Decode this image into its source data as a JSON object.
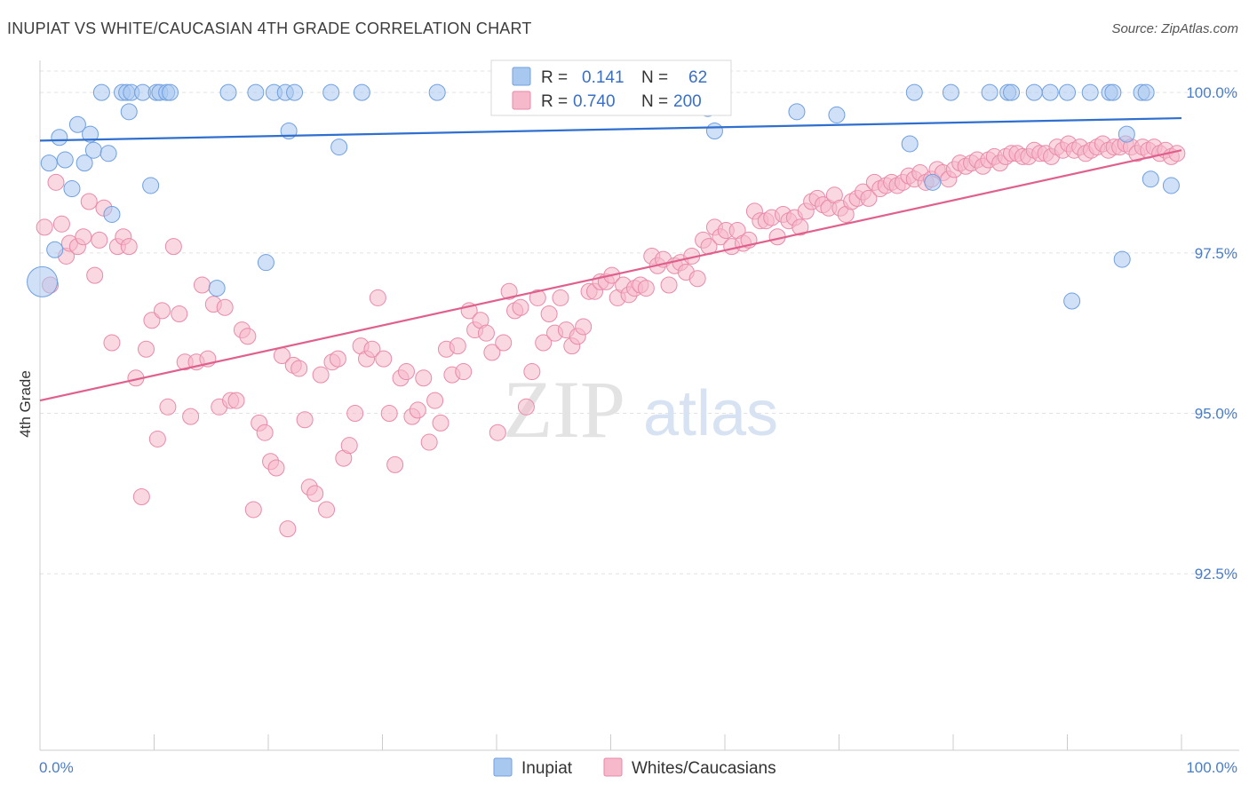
{
  "title": "INUPIAT VS WHITE/CAUCASIAN 4TH GRADE CORRELATION CHART",
  "source": "Source: ZipAtlas.com",
  "watermark": {
    "zip": "ZIP",
    "atlas": "atlas"
  },
  "colors": {
    "inupiat_fill": "#a9c8f0",
    "inupiat_stroke": "#6f9fe0",
    "inupiat_line": "#2f6fcf",
    "white_fill": "#f6b8cb",
    "white_stroke": "#e98aa9",
    "white_line": "#e0608d",
    "tick": "#4a7cc7"
  },
  "legend": {
    "rows": [
      {
        "r_label": "R =",
        "r_value": "0.141",
        "n_label": "N =",
        "n_value": "62"
      },
      {
        "r_label": "R =",
        "r_value": "0.740",
        "n_label": "N =",
        "n_value": "200"
      }
    ]
  },
  "chart_data": {
    "type": "scatter",
    "title": "INUPIAT VS WHITE/CAUCASIAN 4TH GRADE CORRELATION CHART",
    "xlabel": "",
    "ylabel": "4th Grade",
    "xlim": [
      0,
      100
    ],
    "ylim": [
      89.75,
      100.5
    ],
    "x_tick_labels": [
      "0.0%",
      "100.0%"
    ],
    "y_ticks": [
      92.5,
      95.0,
      97.5,
      100.0
    ],
    "y_tick_labels": [
      "92.5%",
      "95.0%",
      "97.5%",
      "100.0%"
    ],
    "legend_placement": "top-center",
    "grid": true,
    "series": [
      {
        "name": "Inupiat",
        "trend": {
          "x0": 0,
          "y0": 99.25,
          "x1": 100,
          "y1": 99.6
        },
        "points": [
          [
            0.2,
            97.05
          ],
          [
            0.8,
            98.9
          ],
          [
            1.3,
            97.55
          ],
          [
            1.7,
            99.3
          ],
          [
            2.2,
            98.95
          ],
          [
            2.8,
            98.5
          ],
          [
            3.3,
            99.5
          ],
          [
            3.9,
            98.9
          ],
          [
            4.4,
            99.35
          ],
          [
            4.7,
            99.1
          ],
          [
            5.4,
            100
          ],
          [
            6.0,
            99.05
          ],
          [
            6.3,
            98.1
          ],
          [
            7.2,
            100
          ],
          [
            7.6,
            100
          ],
          [
            7.8,
            99.7
          ],
          [
            8.0,
            100
          ],
          [
            9.0,
            100
          ],
          [
            9.7,
            98.55
          ],
          [
            10.2,
            100
          ],
          [
            10.5,
            100
          ],
          [
            11.1,
            100
          ],
          [
            11.4,
            100
          ],
          [
            15.5,
            96.95
          ],
          [
            16.5,
            100
          ],
          [
            18.9,
            100
          ],
          [
            19.8,
            97.35
          ],
          [
            20.5,
            100
          ],
          [
            21.5,
            100
          ],
          [
            21.8,
            99.4
          ],
          [
            22.3,
            100
          ],
          [
            25.5,
            100
          ],
          [
            26.2,
            99.15
          ],
          [
            28.2,
            100
          ],
          [
            34.8,
            100
          ],
          [
            47.6,
            100
          ],
          [
            52.9,
            100
          ],
          [
            56.9,
            100
          ],
          [
            58.5,
            99.75
          ],
          [
            59.1,
            99.4
          ],
          [
            66.3,
            99.7
          ],
          [
            69.8,
            99.65
          ],
          [
            76.2,
            99.2
          ],
          [
            76.6,
            100
          ],
          [
            78.2,
            98.6
          ],
          [
            79.8,
            100
          ],
          [
            83.2,
            100
          ],
          [
            84.8,
            100
          ],
          [
            85.1,
            100
          ],
          [
            87.1,
            100
          ],
          [
            88.5,
            100
          ],
          [
            90.0,
            100
          ],
          [
            90.4,
            96.75
          ],
          [
            92.0,
            100
          ],
          [
            93.7,
            100
          ],
          [
            94.0,
            100
          ],
          [
            94.8,
            97.4
          ],
          [
            95.2,
            99.35
          ],
          [
            96.5,
            100
          ],
          [
            96.9,
            100
          ],
          [
            97.3,
            98.65
          ],
          [
            99.1,
            98.55
          ]
        ]
      },
      {
        "name": "Whites/Caucasians",
        "trend": {
          "x0": 0,
          "y0": 95.2,
          "x1": 100,
          "y1": 99.1
        },
        "points": [
          [
            0.4,
            97.9
          ],
          [
            0.9,
            97.0
          ],
          [
            1.4,
            98.6
          ],
          [
            1.9,
            97.95
          ],
          [
            2.3,
            97.45
          ],
          [
            2.6,
            97.65
          ],
          [
            3.3,
            97.6
          ],
          [
            3.8,
            97.75
          ],
          [
            4.3,
            98.3
          ],
          [
            4.8,
            97.15
          ],
          [
            5.2,
            97.7
          ],
          [
            5.6,
            98.2
          ],
          [
            6.3,
            96.1
          ],
          [
            6.8,
            97.6
          ],
          [
            7.3,
            97.75
          ],
          [
            7.8,
            97.6
          ],
          [
            8.4,
            95.55
          ],
          [
            8.9,
            93.7
          ],
          [
            9.3,
            96.0
          ],
          [
            9.8,
            96.45
          ],
          [
            10.3,
            94.6
          ],
          [
            10.7,
            96.6
          ],
          [
            11.2,
            95.1
          ],
          [
            11.7,
            97.6
          ],
          [
            12.2,
            96.55
          ],
          [
            12.7,
            95.8
          ],
          [
            13.2,
            94.95
          ],
          [
            13.7,
            95.8
          ],
          [
            14.2,
            97.0
          ],
          [
            14.7,
            95.85
          ],
          [
            15.2,
            96.7
          ],
          [
            15.7,
            95.1
          ],
          [
            16.2,
            96.65
          ],
          [
            16.7,
            95.2
          ],
          [
            17.2,
            95.2
          ],
          [
            17.7,
            96.3
          ],
          [
            18.2,
            96.2
          ],
          [
            18.7,
            93.5
          ],
          [
            19.2,
            94.85
          ],
          [
            19.7,
            94.7
          ],
          [
            20.2,
            94.25
          ],
          [
            20.7,
            94.15
          ],
          [
            21.2,
            95.9
          ],
          [
            21.7,
            93.2
          ],
          [
            22.2,
            95.75
          ],
          [
            22.7,
            95.7
          ],
          [
            23.2,
            94.9
          ],
          [
            23.6,
            93.85
          ],
          [
            24.1,
            93.75
          ],
          [
            24.6,
            95.6
          ],
          [
            25.1,
            93.5
          ],
          [
            25.6,
            95.8
          ],
          [
            26.1,
            95.85
          ],
          [
            26.6,
            94.3
          ],
          [
            27.1,
            94.5
          ],
          [
            27.6,
            95.0
          ],
          [
            28.1,
            96.05
          ],
          [
            28.6,
            95.85
          ],
          [
            29.1,
            96.0
          ],
          [
            29.6,
            96.8
          ],
          [
            30.1,
            95.85
          ],
          [
            30.6,
            95.0
          ],
          [
            31.1,
            94.2
          ],
          [
            31.6,
            95.55
          ],
          [
            32.1,
            95.65
          ],
          [
            32.6,
            94.95
          ],
          [
            33.1,
            95.05
          ],
          [
            33.6,
            95.55
          ],
          [
            34.1,
            94.55
          ],
          [
            34.6,
            95.2
          ],
          [
            35.1,
            94.85
          ],
          [
            35.6,
            96.0
          ],
          [
            36.1,
            95.6
          ],
          [
            36.6,
            96.05
          ],
          [
            37.1,
            95.65
          ],
          [
            37.6,
            96.6
          ],
          [
            38.1,
            96.3
          ],
          [
            38.6,
            96.45
          ],
          [
            39.1,
            96.25
          ],
          [
            39.6,
            95.95
          ],
          [
            40.1,
            94.7
          ],
          [
            40.6,
            96.1
          ],
          [
            41.1,
            96.9
          ],
          [
            41.6,
            96.6
          ],
          [
            42.1,
            96.65
          ],
          [
            42.6,
            95.1
          ],
          [
            43.1,
            95.65
          ],
          [
            43.6,
            96.8
          ],
          [
            44.1,
            96.1
          ],
          [
            44.6,
            96.55
          ],
          [
            45.1,
            96.25
          ],
          [
            45.6,
            96.8
          ],
          [
            46.1,
            96.3
          ],
          [
            46.6,
            96.05
          ],
          [
            47.1,
            96.2
          ],
          [
            47.6,
            96.35
          ],
          [
            48.1,
            96.9
          ],
          [
            48.6,
            96.9
          ],
          [
            49.1,
            97.05
          ],
          [
            49.6,
            97.05
          ],
          [
            50.1,
            97.15
          ],
          [
            50.6,
            96.8
          ],
          [
            51.1,
            97.0
          ],
          [
            51.6,
            96.85
          ],
          [
            52.1,
            96.95
          ],
          [
            52.6,
            97.0
          ],
          [
            53.1,
            96.95
          ],
          [
            53.6,
            97.45
          ],
          [
            54.1,
            97.3
          ],
          [
            54.6,
            97.4
          ],
          [
            55.1,
            97.0
          ],
          [
            55.6,
            97.3
          ],
          [
            56.1,
            97.35
          ],
          [
            56.6,
            97.2
          ],
          [
            57.1,
            97.45
          ],
          [
            57.6,
            97.1
          ],
          [
            58.1,
            97.7
          ],
          [
            58.6,
            97.6
          ],
          [
            59.1,
            97.9
          ],
          [
            59.6,
            97.75
          ],
          [
            60.1,
            97.85
          ],
          [
            60.6,
            97.6
          ],
          [
            61.1,
            97.85
          ],
          [
            61.6,
            97.65
          ],
          [
            62.1,
            97.7
          ],
          [
            62.6,
            98.15
          ],
          [
            63.1,
            98.0
          ],
          [
            63.6,
            98.0
          ],
          [
            64.1,
            98.05
          ],
          [
            64.6,
            97.75
          ],
          [
            65.1,
            98.1
          ],
          [
            65.6,
            98.0
          ],
          [
            66.1,
            98.05
          ],
          [
            66.6,
            97.9
          ],
          [
            67.1,
            98.15
          ],
          [
            67.6,
            98.3
          ],
          [
            68.1,
            98.35
          ],
          [
            68.6,
            98.25
          ],
          [
            69.1,
            98.2
          ],
          [
            69.6,
            98.4
          ],
          [
            70.1,
            98.2
          ],
          [
            70.6,
            98.1
          ],
          [
            71.1,
            98.3
          ],
          [
            71.6,
            98.35
          ],
          [
            72.1,
            98.45
          ],
          [
            72.6,
            98.35
          ],
          [
            73.1,
            98.6
          ],
          [
            73.6,
            98.5
          ],
          [
            74.1,
            98.55
          ],
          [
            74.6,
            98.6
          ],
          [
            75.1,
            98.55
          ],
          [
            75.6,
            98.6
          ],
          [
            76.1,
            98.7
          ],
          [
            76.6,
            98.65
          ],
          [
            77.1,
            98.75
          ],
          [
            77.6,
            98.6
          ],
          [
            78.1,
            98.65
          ],
          [
            78.6,
            98.8
          ],
          [
            79.1,
            98.75
          ],
          [
            79.6,
            98.65
          ],
          [
            80.1,
            98.8
          ],
          [
            80.6,
            98.9
          ],
          [
            81.1,
            98.85
          ],
          [
            81.6,
            98.9
          ],
          [
            82.1,
            98.95
          ],
          [
            82.6,
            98.85
          ],
          [
            83.1,
            98.95
          ],
          [
            83.6,
            99.0
          ],
          [
            84.1,
            98.9
          ],
          [
            84.6,
            99.0
          ],
          [
            85.1,
            99.05
          ],
          [
            85.6,
            99.05
          ],
          [
            86.1,
            99.0
          ],
          [
            86.6,
            99.0
          ],
          [
            87.1,
            99.1
          ],
          [
            87.6,
            99.05
          ],
          [
            88.1,
            99.05
          ],
          [
            88.6,
            99.0
          ],
          [
            89.1,
            99.15
          ],
          [
            89.6,
            99.1
          ],
          [
            90.1,
            99.2
          ],
          [
            90.6,
            99.1
          ],
          [
            91.1,
            99.15
          ],
          [
            91.6,
            99.05
          ],
          [
            92.1,
            99.1
          ],
          [
            92.6,
            99.15
          ],
          [
            93.1,
            99.2
          ],
          [
            93.6,
            99.1
          ],
          [
            94.1,
            99.15
          ],
          [
            94.6,
            99.15
          ],
          [
            95.1,
            99.2
          ],
          [
            95.6,
            99.15
          ],
          [
            96.1,
            99.05
          ],
          [
            96.6,
            99.15
          ],
          [
            97.1,
            99.1
          ],
          [
            97.6,
            99.15
          ],
          [
            98.1,
            99.05
          ],
          [
            98.6,
            99.1
          ],
          [
            99.1,
            99.0
          ],
          [
            99.6,
            99.05
          ]
        ]
      }
    ]
  }
}
